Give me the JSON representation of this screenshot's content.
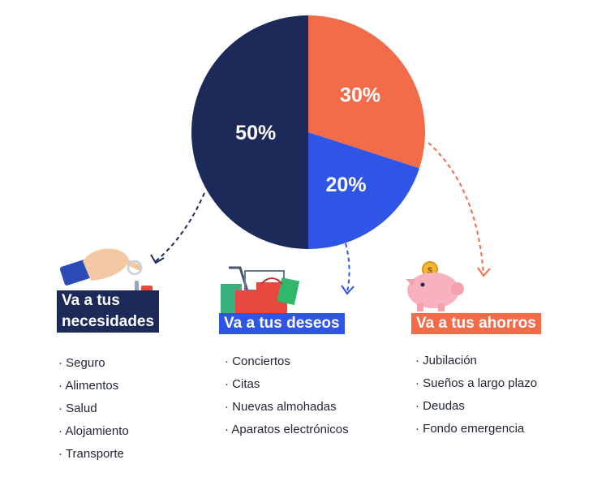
{
  "chart_data": {
    "type": "pie",
    "slices": [
      {
        "label": "50%",
        "value": 50,
        "color": "#1b2a58"
      },
      {
        "label": "30%",
        "value": 30,
        "color": "#f26c4a"
      },
      {
        "label": "20%",
        "value": 20,
        "color": "#2e55e6"
      }
    ]
  },
  "categories": {
    "necesidades": {
      "label_line1": "Va a tus",
      "label_line2": "necesidades",
      "color": "#1b2a58",
      "items": [
        "Seguro",
        "Alimentos",
        "Salud",
        "Alojamiento",
        "Transporte"
      ]
    },
    "deseos": {
      "label": "Va a tus deseos",
      "color": "#2e55e6",
      "items": [
        "Conciertos",
        "Citas",
        "Nuevas almohadas",
        "Aparatos electrónicos"
      ]
    },
    "ahorros": {
      "label": "Va a tus ahorros",
      "color": "#f26c4a",
      "items": [
        "Jubilación",
        "Sueños a largo plazo",
        "Deudas",
        "Fondo emergencia"
      ]
    }
  },
  "icons": {
    "necesidades": "hand-with-keys-icon",
    "deseos": "shopping-cart-bags-icon",
    "ahorros": "piggy-bank-coin-icon"
  }
}
